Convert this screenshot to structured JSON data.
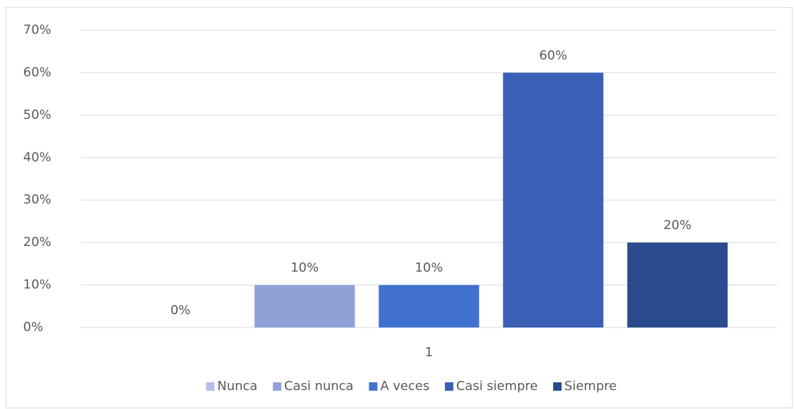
{
  "chart_data": {
    "type": "bar",
    "categories": [
      "1"
    ],
    "series": [
      {
        "name": "Nunca",
        "color": "#b4c1e6",
        "values": [
          0
        ],
        "value_labels": [
          "0%"
        ]
      },
      {
        "name": "Casi nunca",
        "color": "#8ea2d8",
        "values": [
          10
        ],
        "value_labels": [
          "10%"
        ]
      },
      {
        "name": "A veces",
        "color": "#4172d0",
        "values": [
          10
        ],
        "value_labels": [
          "10%"
        ]
      },
      {
        "name": "Casi siempre",
        "color": "#3a60b6",
        "values": [
          60
        ],
        "value_labels": [
          "60%"
        ]
      },
      {
        "name": "Siempre",
        "color": "#2c4a8e",
        "values": [
          20
        ],
        "value_labels": [
          "20%"
        ]
      }
    ],
    "ylim": [
      0,
      70
    ],
    "yticks": [
      {
        "value": 0,
        "label": "0%"
      },
      {
        "value": 10,
        "label": "10%"
      },
      {
        "value": 20,
        "label": "20%"
      },
      {
        "value": 30,
        "label": "30%"
      },
      {
        "value": 40,
        "label": "40%"
      },
      {
        "value": 50,
        "label": "50%"
      },
      {
        "value": 60,
        "label": "60%"
      },
      {
        "value": 70,
        "label": "70%"
      }
    ],
    "grid": true,
    "legend": "bottom"
  }
}
